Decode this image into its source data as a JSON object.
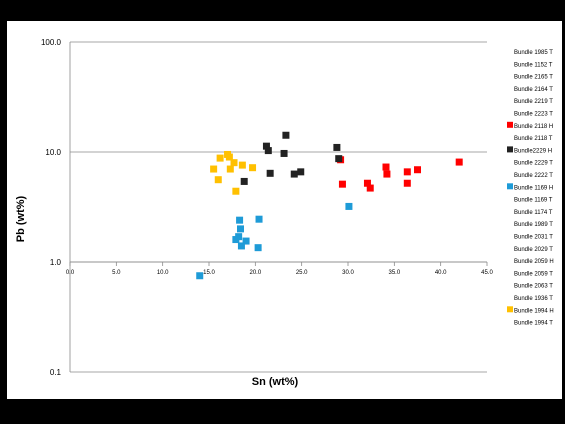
{
  "chart_data": {
    "type": "scatter",
    "title": "",
    "xlabel": "Sn (wt%)",
    "ylabel": "Pb (wt%)",
    "x_axis": {
      "range": [
        0,
        45
      ],
      "ticks": [
        0,
        5,
        10,
        15,
        20,
        25,
        30,
        35,
        40,
        45
      ],
      "tick_labels": [
        "0.0",
        "5.0",
        "10.0",
        "15.0",
        "20.0",
        "25.0",
        "30.0",
        "35.0",
        "40.0",
        "45.0"
      ],
      "crosses_y_at": 1.0
    },
    "y_axis": {
      "scale": "log",
      "range": [
        0.1,
        100
      ],
      "ticks": [
        0.1,
        1,
        10,
        100
      ],
      "tick_labels": [
        "0.1",
        "1.0",
        "10.0",
        "100.0"
      ]
    },
    "grid": "horizontal major gridlines",
    "legend_position": "right",
    "legend": [
      {
        "label": "Bundle 1985 T",
        "color": ""
      },
      {
        "label": "Bundle 1152 T",
        "color": ""
      },
      {
        "label": "Bundle 2165 T",
        "color": ""
      },
      {
        "label": "Bundle 2164 T",
        "color": ""
      },
      {
        "label": "Bundle 2219 T",
        "color": ""
      },
      {
        "label": "Bundle 2223 T",
        "color": ""
      },
      {
        "label": "Bundle 2118 H",
        "color": "#ff0000"
      },
      {
        "label": "Bundle 2118 T",
        "color": ""
      },
      {
        "label": "Bundle2229 H",
        "color": "#222222"
      },
      {
        "label": "Bundle 2229 T",
        "color": ""
      },
      {
        "label": "Bundle 2222 T",
        "color": ""
      },
      {
        "label": "Bundle 1169 H",
        "color": "#1e9bd7"
      },
      {
        "label": "Bundle 1169 T",
        "color": ""
      },
      {
        "label": "Bundle 1174 T",
        "color": ""
      },
      {
        "label": "Bundle 1989 T",
        "color": ""
      },
      {
        "label": "Bundle 2031 T",
        "color": ""
      },
      {
        "label": "Bundle 2029 T",
        "color": ""
      },
      {
        "label": "Bundle 2059 H",
        "color": ""
      },
      {
        "label": "Bundle 2059 T",
        "color": ""
      },
      {
        "label": "Bundle 2063 T",
        "color": ""
      },
      {
        "label": "Bundle 1936 T",
        "color": ""
      },
      {
        "label": "Bundle 1994 H",
        "color": "#ffc000"
      },
      {
        "label": "Bundle 1994 T",
        "color": ""
      }
    ],
    "series": [
      {
        "name": "Bundle 2118 H",
        "color": "#ff0000",
        "points": [
          {
            "x": 29.2,
            "y": 8.5
          },
          {
            "x": 29.4,
            "y": 5.1
          },
          {
            "x": 32.1,
            "y": 5.2
          },
          {
            "x": 32.4,
            "y": 4.7
          },
          {
            "x": 34.1,
            "y": 7.3
          },
          {
            "x": 34.2,
            "y": 6.3
          },
          {
            "x": 36.4,
            "y": 6.6
          },
          {
            "x": 36.4,
            "y": 5.2
          },
          {
            "x": 37.5,
            "y": 6.9
          },
          {
            "x": 42.0,
            "y": 8.1
          }
        ]
      },
      {
        "name": "Bundle2229 H",
        "color": "#222222",
        "points": [
          {
            "x": 18.8,
            "y": 5.4
          },
          {
            "x": 21.2,
            "y": 11.3
          },
          {
            "x": 21.4,
            "y": 10.3
          },
          {
            "x": 21.6,
            "y": 6.4
          },
          {
            "x": 23.1,
            "y": 9.7
          },
          {
            "x": 23.3,
            "y": 14.2
          },
          {
            "x": 24.2,
            "y": 6.3
          },
          {
            "x": 24.9,
            "y": 6.6
          },
          {
            "x": 28.8,
            "y": 11.0
          },
          {
            "x": 29.0,
            "y": 8.7
          }
        ]
      },
      {
        "name": "Bundle 1169 H",
        "color": "#1e9bd7",
        "points": [
          {
            "x": 14.0,
            "y": 0.75
          },
          {
            "x": 17.9,
            "y": 1.6
          },
          {
            "x": 18.2,
            "y": 1.7
          },
          {
            "x": 18.3,
            "y": 2.4
          },
          {
            "x": 18.4,
            "y": 2.0
          },
          {
            "x": 18.5,
            "y": 1.4
          },
          {
            "x": 19.0,
            "y": 1.55
          },
          {
            "x": 20.3,
            "y": 1.35
          },
          {
            "x": 20.4,
            "y": 2.45
          },
          {
            "x": 30.1,
            "y": 3.2
          }
        ]
      },
      {
        "name": "Bundle 1994 H",
        "color": "#ffc000",
        "points": [
          {
            "x": 15.5,
            "y": 7.0
          },
          {
            "x": 16.0,
            "y": 5.6
          },
          {
            "x": 16.2,
            "y": 8.8
          },
          {
            "x": 17.0,
            "y": 9.5
          },
          {
            "x": 17.2,
            "y": 9.0
          },
          {
            "x": 17.3,
            "y": 7.0
          },
          {
            "x": 17.7,
            "y": 8.0
          },
          {
            "x": 17.9,
            "y": 4.4
          },
          {
            "x": 18.6,
            "y": 7.6
          },
          {
            "x": 19.7,
            "y": 7.2
          }
        ]
      }
    ]
  }
}
